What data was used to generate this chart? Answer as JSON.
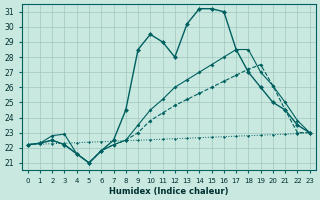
{
  "xlabel": "Humidex (Indice chaleur)",
  "ylabel": "",
  "bg_color": "#c8e8e0",
  "grid_color": "#a0c8c0",
  "line_color": "#006060",
  "xlim": [
    -0.5,
    23.5
  ],
  "ylim": [
    20.5,
    31.5
  ],
  "xticks": [
    0,
    1,
    2,
    3,
    4,
    5,
    6,
    7,
    8,
    9,
    10,
    11,
    12,
    13,
    14,
    15,
    16,
    17,
    18,
    19,
    20,
    21,
    22,
    23
  ],
  "yticks": [
    21,
    22,
    23,
    24,
    25,
    26,
    27,
    28,
    29,
    30,
    31
  ],
  "line1_x": [
    0,
    1,
    2,
    3,
    4,
    5,
    6,
    7,
    8,
    9,
    10,
    11,
    12,
    13,
    14,
    15,
    16,
    17,
    18,
    19,
    20,
    21,
    22,
    23
  ],
  "line1_y": [
    22.2,
    22.3,
    22.5,
    22.2,
    21.6,
    21.0,
    21.8,
    22.2,
    22.5,
    23.0,
    23.8,
    24.3,
    24.8,
    25.2,
    25.6,
    26.0,
    26.4,
    26.8,
    27.2,
    27.5,
    26.1,
    24.5,
    23.0,
    23.0
  ],
  "line2_x": [
    0,
    1,
    2,
    3,
    4,
    5,
    6,
    7,
    8,
    9,
    10,
    11,
    12,
    13,
    14,
    15,
    16,
    17,
    18,
    19,
    20,
    21,
    22,
    23
  ],
  "line2_y": [
    22.2,
    22.3,
    22.5,
    22.2,
    21.6,
    21.0,
    21.8,
    22.5,
    24.5,
    28.5,
    29.5,
    29.0,
    28.0,
    30.2,
    31.2,
    31.2,
    31.0,
    28.5,
    27.0,
    26.0,
    25.0,
    24.5,
    23.5,
    23.0
  ],
  "line3_x": [
    0,
    1,
    2,
    3,
    4,
    5,
    6,
    7,
    8,
    9,
    10,
    11,
    12,
    13,
    14,
    15,
    16,
    17,
    18,
    19,
    20,
    21,
    22,
    23
  ],
  "line3_y": [
    22.2,
    22.3,
    22.8,
    22.9,
    21.6,
    21.0,
    21.8,
    22.2,
    22.5,
    23.5,
    24.5,
    25.2,
    26.0,
    26.5,
    27.0,
    27.5,
    28.0,
    28.5,
    28.5,
    27.0,
    26.1,
    25.0,
    23.8,
    23.0
  ],
  "line4_y": [
    22.2,
    22.23,
    22.27,
    22.3,
    22.33,
    22.37,
    22.4,
    22.43,
    22.47,
    22.5,
    22.53,
    22.57,
    22.6,
    22.63,
    22.67,
    22.7,
    22.73,
    22.77,
    22.8,
    22.83,
    22.87,
    22.9,
    22.93,
    23.0
  ]
}
